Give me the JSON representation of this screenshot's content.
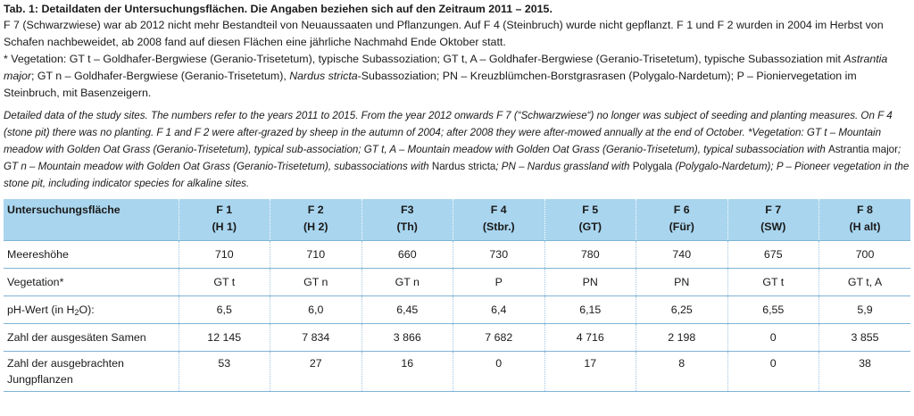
{
  "title": "Tab. 1: Detaildaten der Untersuchungsflächen. Die Angaben beziehen sich auf den Zeitraum 2011 – 2015.",
  "de_para1": "F 7 (Schwarzwiese) war ab 2012 nicht mehr Bestandteil von Neuaussaaten und Pflanzungen. Auf F 4 (Steinbruch) wurde nicht gepflanzt. F 1 und F 2 wurden in 2004 im Herbst von Schafen nachbeweidet, ab 2008 fand auf diesen Flächen eine jährliche Nachmahd Ende Oktober statt.",
  "de_para2": {
    "a": "* Vegetation: GT t – Goldhafer-Bergwiese (Geranio-Trisetetum), typische Subassoziation; GT t, A – Goldhafer-Bergwiese (Geranio-Trisetetum), typische Subassoziation mit ",
    "a_it": "Astrantia major",
    "b": "; GT n – Goldhafer-Bergwiese (Geranio-Trisetetum), ",
    "b_it": "Nardus stricta",
    "c": "-Subassoziation; PN – Kreuzblümchen-Borstgrasrasen (Polygalo-Nardetum); P – Pioniervegetation im Steinbruch, mit Basenzeigern."
  },
  "en_para": {
    "a": "Detailed data of the study sites. The numbers refer to the years 2011 to 2015. From the year 2012 onwards F 7 (“Schwarzwiese“) no longer was subject of seeding and planting measures. On F 4 (stone pit) there was no planting. F 1 and F 2 were after-grazed by sheep in the autumn of 2004; after 2008 they were after-mowed annually at the end of October. *Vegetation: GT t – Mountain meadow with Golden Oat Grass (Geranio-Trisetetum), typical sub-association; GT t, A – Mountain meadow with Golden Oat Grass (Geranio-Trisetetum), typical subassociation with ",
    "a_up": "Astrantia major",
    "b": "; GT n – Mountain meadow with Golden Oat Grass (Geranio-Trisetetum), subassociations with ",
    "b_up": "Nardus stricta",
    "c": "; PN – Nardus grassland with ",
    "c_up": "Polygala",
    "d": " (Polygalo-Nardetum); P – Pioneer vegetation in the stone pit, including indicator species for alkaline sites."
  },
  "table": {
    "header_label": "Untersuchungsfläche",
    "columns": [
      {
        "id": "F 1",
        "abbr": "(H 1)"
      },
      {
        "id": "F 2",
        "abbr": "(H 2)"
      },
      {
        "id": "F3",
        "abbr": "(Th)"
      },
      {
        "id": "F 4",
        "abbr": "(Stbr.)"
      },
      {
        "id": "F 5",
        "abbr": "(GT)"
      },
      {
        "id": "F 6",
        "abbr": "(Für)"
      },
      {
        "id": "F 7",
        "abbr": "(SW)"
      },
      {
        "id": "F 8",
        "abbr": "(H alt)"
      }
    ],
    "rows": [
      {
        "label": "Meereshöhe",
        "values": [
          "710",
          "710",
          "660",
          "730",
          "780",
          "740",
          "675",
          "700"
        ]
      },
      {
        "label": "Vegetation*",
        "values": [
          "GT t",
          "GT n",
          "GT n",
          "P",
          "PN",
          "PN",
          "GT t",
          "GT t, A"
        ]
      },
      {
        "label_pre": "pH-Wert (in H",
        "label_sub": "2",
        "label_post": "O):",
        "values": [
          "6,5",
          "6,0",
          "6,45",
          "6,4",
          "6,15",
          "6,25",
          "6,55",
          "5,9"
        ]
      },
      {
        "label": "Zahl der ausgesäten Samen",
        "values": [
          "12 145",
          "7 834",
          "3 866",
          "7 682",
          "4 716",
          "2 198",
          "0",
          "3 855"
        ]
      },
      {
        "label_line1": "Zahl der ausgebrachten",
        "label_line2": "Jungpflanzen",
        "values": [
          "53",
          "27",
          "16",
          "0",
          "17",
          "8",
          "0",
          "38"
        ]
      }
    ]
  }
}
